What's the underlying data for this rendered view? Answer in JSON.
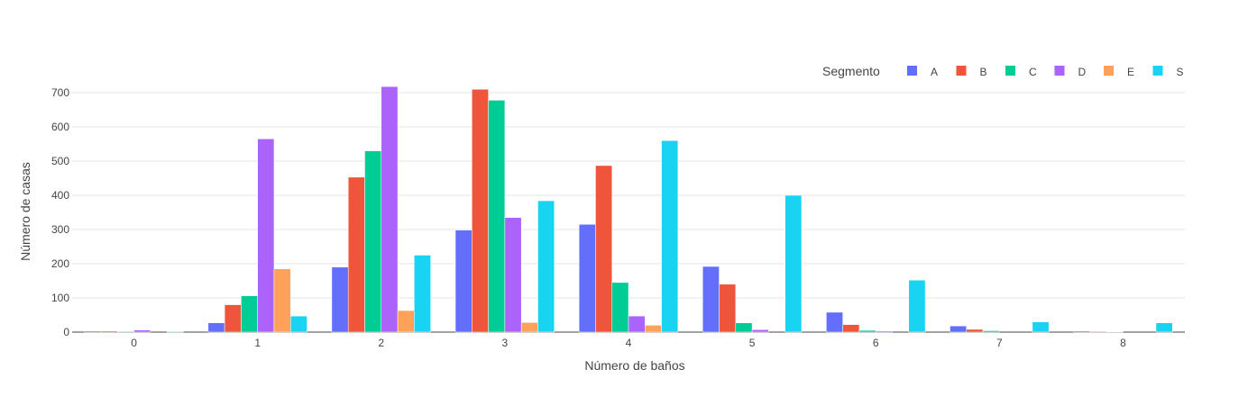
{
  "chart_data": {
    "type": "bar",
    "categories": [
      "0",
      "1",
      "2",
      "3",
      "4",
      "5",
      "6",
      "7",
      "8"
    ],
    "xlabel": "Número de baños",
    "ylabel": "Número de casas",
    "ylim": [
      0,
      750
    ],
    "yticks": [
      "0",
      "100",
      "200",
      "300",
      "400",
      "500",
      "600",
      "700"
    ],
    "grid": true,
    "legend": {
      "title": "Segmento",
      "placement": "top-right",
      "orientation": "horizontal"
    },
    "series": [
      {
        "name": "A",
        "color": "#636efa",
        "values": [
          3,
          27,
          190,
          298,
          315,
          192,
          58,
          18,
          3
        ]
      },
      {
        "name": "B",
        "color": "#ef553b",
        "values": [
          3,
          80,
          453,
          710,
          487,
          140,
          22,
          8,
          2
        ]
      },
      {
        "name": "C",
        "color": "#00cc96",
        "values": [
          2,
          106,
          530,
          678,
          145,
          27,
          5,
          4,
          1
        ]
      },
      {
        "name": "D",
        "color": "#ab63fa",
        "values": [
          6,
          565,
          718,
          335,
          47,
          7,
          3,
          0,
          0
        ]
      },
      {
        "name": "E",
        "color": "#ffa15a",
        "values": [
          0,
          185,
          63,
          28,
          20,
          0,
          0,
          0,
          0
        ]
      },
      {
        "name": "S",
        "color": "#19d3f3",
        "values": [
          2,
          47,
          225,
          384,
          560,
          400,
          152,
          30,
          27
        ]
      }
    ]
  }
}
